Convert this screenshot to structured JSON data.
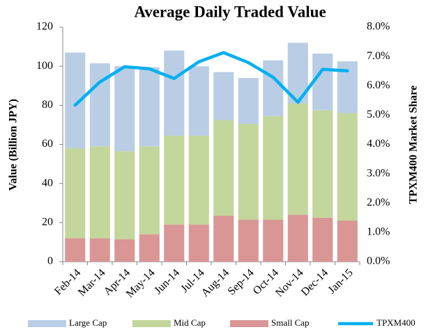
{
  "chart_data": {
    "type": "bar",
    "stacked": true,
    "title": "Average Daily Traded Value",
    "y_label": "Value (Billion JPY)",
    "y2_label": "TPXM400 Market Share",
    "categories": [
      "Feb-14",
      "Mar-14",
      "Apr-14",
      "May-14",
      "Jun-14",
      "Jul-14",
      "Aug-14",
      "Sep-14",
      "Oct-14",
      "Nov-14",
      "Dec-14",
      "Jan-15"
    ],
    "series": [
      {
        "name": "Large Cap",
        "color": "#b9cde5",
        "type": "bar",
        "values": [
          49,
          42.5,
          43.5,
          40.5,
          43.5,
          35.5,
          24.5,
          23.5,
          28.5,
          31,
          29,
          26.5
        ]
      },
      {
        "name": "Mid Cap",
        "color": "#c3d69b",
        "type": "bar",
        "values": [
          46,
          47,
          45,
          45,
          45.5,
          45.5,
          49,
          49,
          53,
          57,
          55,
          55
        ]
      },
      {
        "name": "Small Cap",
        "color": "#d99694",
        "type": "bar",
        "values": [
          12,
          12,
          11.5,
          14,
          19,
          19,
          23.5,
          21.5,
          21.5,
          24,
          22.5,
          21
        ]
      },
      {
        "name": "TPXM400",
        "color": "#00b0f0",
        "type": "line",
        "axis": "y2",
        "values": [
          5.34,
          6.13,
          6.65,
          6.58,
          6.25,
          6.82,
          7.13,
          6.79,
          6.29,
          5.44,
          6.56,
          6.51
        ]
      }
    ],
    "ylim": [
      0,
      120
    ],
    "yticks": [
      0,
      20,
      40,
      60,
      80,
      100,
      120
    ],
    "y2lim": [
      0,
      8
    ],
    "y2ticks": [
      {
        "value": 0,
        "label": "0.0%"
      },
      {
        "value": 1,
        "label": "1.0%"
      },
      {
        "value": 2,
        "label": "2.0%"
      },
      {
        "value": 3,
        "label": "3.0%"
      },
      {
        "value": 4,
        "label": "4.0%"
      },
      {
        "value": 5,
        "label": "5.0%"
      },
      {
        "value": 6,
        "label": "6.0%"
      },
      {
        "value": 7,
        "label": "7.0%"
      },
      {
        "value": 8,
        "label": "8.0%"
      }
    ],
    "grid": false,
    "legend": "bottom"
  }
}
